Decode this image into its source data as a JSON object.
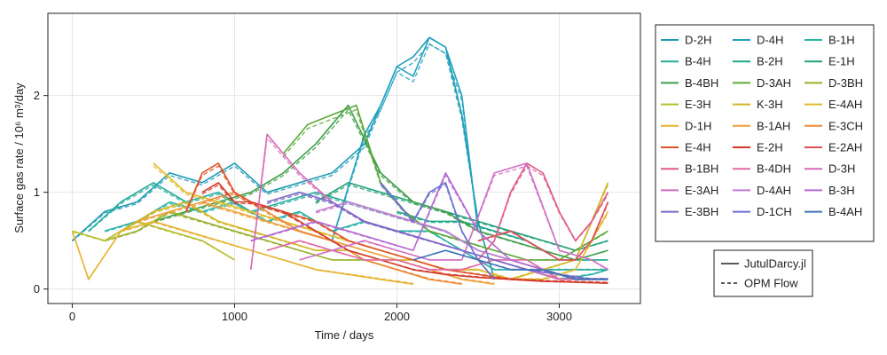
{
  "chart_data": {
    "type": "line",
    "title": "",
    "xlabel": "Time / days",
    "ylabel": "Surface gas rate / 10⁶ m³/day",
    "xlim": [
      -150,
      3500
    ],
    "ylim": [
      -0.15,
      2.85
    ],
    "xticks": [
      0,
      1000,
      2000,
      3000
    ],
    "yticks": [
      0,
      1,
      2
    ],
    "grid": true,
    "legend_position": "right",
    "line_styles": [
      {
        "name": "JutulDarcy.jl",
        "dash": "solid"
      },
      {
        "name": "OPM Flow",
        "dash": "dashed"
      }
    ],
    "series": [
      {
        "name": "D-2H",
        "color": "#1f9bb4",
        "x": [
          0,
          200,
          400,
          600,
          800,
          1000,
          1200,
          1400,
          1600,
          1800,
          2000,
          2100,
          2200,
          2300,
          2400,
          2500,
          2600
        ],
        "values": [
          0.5,
          0.8,
          0.9,
          1.2,
          1.1,
          1.3,
          1.0,
          1.1,
          1.2,
          1.5,
          2.3,
          2.4,
          2.6,
          2.5,
          1.8,
          0.7,
          0.1
        ]
      },
      {
        "name": "D-4H",
        "color": "#21a3c0",
        "x": [
          1600,
          1800,
          1900,
          2000,
          2100,
          2200,
          2300,
          2400,
          2500
        ],
        "values": [
          0.5,
          1.6,
          1.9,
          2.3,
          2.2,
          2.6,
          2.5,
          2.0,
          0.6
        ]
      },
      {
        "name": "B-1H",
        "color": "#2bb3a8",
        "x": [
          200,
          400,
          600,
          800,
          1000,
          1200,
          1400,
          1600,
          1800,
          2000,
          2200,
          2400,
          2600,
          2800,
          3000,
          3200,
          3300
        ],
        "values": [
          0.6,
          0.7,
          0.9,
          0.8,
          0.9,
          0.7,
          0.8,
          0.6,
          0.7,
          0.6,
          0.6,
          0.4,
          0.2,
          0.2,
          0.1,
          0.15,
          0.2
        ]
      },
      {
        "name": "B-4H",
        "color": "#26ad9c",
        "x": [
          100,
          300,
          500,
          700,
          900,
          1100,
          1300,
          1500,
          1700,
          1900,
          2100,
          2300,
          2500,
          2700,
          2900,
          3100,
          3300
        ],
        "values": [
          0.6,
          0.9,
          1.1,
          0.9,
          1.0,
          0.8,
          0.9,
          1.0,
          0.9,
          0.8,
          0.7,
          0.6,
          0.4,
          0.3,
          0.2,
          0.2,
          0.2
        ]
      },
      {
        "name": "B-2H",
        "color": "#1fa98a",
        "x": [
          2000,
          2200,
          2400,
          2600,
          2800,
          3000,
          3200,
          3300
        ],
        "values": [
          0.8,
          0.7,
          0.7,
          0.6,
          0.5,
          0.3,
          0.3,
          0.3
        ]
      },
      {
        "name": "E-1H",
        "color": "#24a07a",
        "x": [
          1500,
          1700,
          1900,
          2100,
          2300,
          2500,
          2700,
          2900,
          3100,
          3300
        ],
        "values": [
          0.9,
          1.1,
          1.0,
          0.9,
          0.8,
          0.7,
          0.6,
          0.5,
          0.4,
          0.5
        ]
      },
      {
        "name": "B-4BH",
        "color": "#3e9e4a",
        "x": [
          500,
          700,
          900,
          1100,
          1300,
          1500,
          1700,
          1900,
          2100,
          2300,
          2500,
          2700,
          2900,
          3100,
          3300
        ],
        "values": [
          0.7,
          0.8,
          0.9,
          1.0,
          1.2,
          1.5,
          1.9,
          1.2,
          0.9,
          0.8,
          0.6,
          0.5,
          0.4,
          0.3,
          0.4
        ]
      },
      {
        "name": "D-3AH",
        "color": "#5aa93a",
        "x": [
          1300,
          1450,
          1600,
          1750,
          1900,
          2050,
          2200,
          2400,
          2600,
          2800,
          3000,
          3200,
          3300
        ],
        "values": [
          1.4,
          1.7,
          1.8,
          1.9,
          1.1,
          0.8,
          0.6,
          0.5,
          0.4,
          0.3,
          0.3,
          0.5,
          0.6
        ]
      },
      {
        "name": "D-3BH",
        "color": "#98b12d",
        "x": [
          200,
          400,
          600,
          800,
          1000,
          1200,
          1400,
          1600,
          1800,
          2000,
          2200
        ],
        "values": [
          0.5,
          0.6,
          0.8,
          0.7,
          0.6,
          0.5,
          0.4,
          0.3,
          0.3,
          0.2,
          0.1
        ]
      },
      {
        "name": "E-3H",
        "color": "#b8bd2a",
        "x": [
          0,
          200,
          400,
          600,
          800,
          1000
        ],
        "values": [
          0.6,
          0.5,
          0.7,
          0.6,
          0.5,
          0.3
        ]
      },
      {
        "name": "K-3H",
        "color": "#d1b520",
        "x": [
          300,
          500,
          700,
          900,
          1100,
          1300,
          1500,
          1700,
          1900,
          2100,
          2300,
          2500,
          2700,
          2900,
          3100,
          3300
        ],
        "values": [
          0.6,
          0.8,
          0.9,
          0.7,
          0.6,
          0.5,
          0.4,
          0.4,
          0.3,
          0.3,
          0.2,
          0.2,
          0.1,
          0.2,
          0.3,
          1.1
        ]
      },
      {
        "name": "E-4AH",
        "color": "#e0bb28",
        "x": [
          500,
          700,
          900,
          1100,
          1300,
          1500,
          1700,
          1900,
          2100,
          2300,
          2500,
          2700,
          2900,
          3100,
          3300
        ],
        "values": [
          1.3,
          1.0,
          0.9,
          0.8,
          0.7,
          0.6,
          0.5,
          0.4,
          0.3,
          0.2,
          0.2,
          0.1,
          0.1,
          0.2,
          0.8
        ]
      },
      {
        "name": "D-1H",
        "color": "#e8b230",
        "x": [
          0,
          100,
          300,
          500,
          700,
          900,
          1100,
          1300,
          1500,
          1700,
          1900,
          2100
        ],
        "values": [
          0.6,
          0.1,
          0.6,
          0.7,
          0.6,
          0.5,
          0.4,
          0.3,
          0.2,
          0.15,
          0.1,
          0.05
        ]
      },
      {
        "name": "B-1AH",
        "color": "#f0a03a",
        "x": [
          400,
          600,
          800,
          1000,
          1200,
          1400,
          1600,
          1800,
          2000,
          2200,
          2400,
          2600
        ],
        "values": [
          0.7,
          0.8,
          0.9,
          0.8,
          0.7,
          0.6,
          0.5,
          0.4,
          0.3,
          0.2,
          0.1,
          0.05
        ]
      },
      {
        "name": "E-3CH",
        "color": "#ef8a3a",
        "x": [
          800,
          1000,
          1200,
          1400,
          1600,
          1800,
          2000,
          2200,
          2400
        ],
        "values": [
          0.9,
          1.0,
          0.8,
          0.6,
          0.5,
          0.3,
          0.2,
          0.1,
          0.05
        ]
      },
      {
        "name": "E-4H",
        "color": "#e0532a",
        "x": [
          700,
          800,
          900,
          1000,
          1100,
          1300,
          1500,
          1700,
          1900,
          2100,
          2300,
          2500,
          2700,
          2900,
          3100,
          3300
        ],
        "values": [
          0.8,
          1.2,
          1.3,
          1.0,
          0.9,
          0.8,
          0.7,
          0.5,
          0.4,
          0.3,
          0.2,
          0.15,
          0.1,
          0.08,
          0.07,
          0.06
        ]
      },
      {
        "name": "E-2H",
        "color": "#d43a2c",
        "x": [
          800,
          900,
          1000,
          1100,
          1300,
          1500,
          1700,
          1900,
          2100,
          2300,
          2500,
          2700,
          2900,
          3100,
          3300
        ],
        "values": [
          1.0,
          1.1,
          0.9,
          0.9,
          0.8,
          0.6,
          0.4,
          0.3,
          0.2,
          0.15,
          0.12,
          0.1,
          0.08,
          0.07,
          0.06
        ]
      },
      {
        "name": "E-2AH",
        "color": "#e04e5a",
        "x": [
          2500,
          2700,
          2900,
          3000,
          3100,
          3200,
          3300
        ],
        "values": [
          0.5,
          0.6,
          0.4,
          0.3,
          0.3,
          0.5,
          0.9
        ]
      },
      {
        "name": "B-1BH",
        "color": "#e05a8a",
        "x": [
          2500,
          2600,
          2700,
          2800,
          2900,
          3000,
          3100,
          3200,
          3300
        ],
        "values": [
          0.3,
          0.5,
          1.0,
          1.3,
          1.2,
          0.8,
          0.5,
          0.7,
          1.0
        ]
      },
      {
        "name": "B-4DH",
        "color": "#df6aa5",
        "x": [
          1200,
          1400,
          1600,
          1800,
          2000,
          2200,
          2400,
          2600,
          2800,
          3000,
          3200,
          3300
        ],
        "values": [
          0.4,
          0.5,
          0.4,
          0.3,
          0.3,
          0.2,
          0.2,
          0.3,
          0.3,
          0.1,
          0.1,
          0.1
        ]
      },
      {
        "name": "D-3H",
        "color": "#d76ab8",
        "x": [
          1100,
          1200,
          1300,
          1400,
          1600,
          1800,
          2000,
          2200,
          2400,
          2600,
          2800,
          3000
        ],
        "values": [
          0.2,
          1.6,
          1.4,
          1.2,
          0.9,
          0.7,
          0.6,
          0.5,
          0.4,
          0.3,
          0.2,
          0.1
        ]
      },
      {
        "name": "E-3AH",
        "color": "#cf6ec4",
        "x": [
          1400,
          1600,
          1800,
          2000,
          2200,
          2400,
          2600,
          2800,
          3000,
          3200,
          3300
        ],
        "values": [
          0.3,
          0.4,
          0.5,
          0.4,
          0.3,
          0.3,
          1.2,
          1.3,
          0.4,
          0.3,
          0.2
        ]
      },
      {
        "name": "D-4AH",
        "color": "#c47ad0",
        "x": [
          1500,
          1700,
          1900,
          2100,
          2300,
          2500,
          2700,
          2900,
          3100,
          3300
        ],
        "values": [
          0.8,
          0.9,
          0.8,
          0.7,
          0.6,
          0.4,
          0.3,
          0.2,
          0.1,
          0.1
        ]
      },
      {
        "name": "B-3H",
        "color": "#b56ad2",
        "x": [
          1100,
          1300,
          1500,
          1700,
          1900,
          2100,
          2300,
          2500,
          2700,
          2900,
          3100,
          3300
        ],
        "values": [
          0.5,
          0.6,
          0.7,
          0.6,
          0.5,
          0.4,
          1.2,
          0.6,
          0.3,
          0.2,
          0.1,
          0.1
        ]
      },
      {
        "name": "E-3BH",
        "color": "#7a68c8",
        "x": [
          1200,
          1400,
          1600,
          1800,
          2000,
          2200,
          2400,
          2600,
          2800,
          3000,
          3200,
          3300
        ],
        "values": [
          0.9,
          1.0,
          0.9,
          0.7,
          0.6,
          0.5,
          0.4,
          0.3,
          0.2,
          0.15,
          0.1,
          0.1
        ]
      },
      {
        "name": "D-1CH",
        "color": "#6a6fd0",
        "x": [
          1900,
          2000,
          2100,
          2200,
          2300,
          2400,
          2500,
          2600
        ],
        "values": [
          1.1,
          0.9,
          0.7,
          1.0,
          1.1,
          0.6,
          0.3,
          0.1
        ]
      },
      {
        "name": "B-4AH",
        "color": "#3f73b8",
        "x": [
          2100,
          2300,
          2500,
          2700,
          2900,
          3100,
          3300
        ],
        "values": [
          0.3,
          0.4,
          0.3,
          0.2,
          0.2,
          0.1,
          0.1
        ]
      }
    ]
  }
}
